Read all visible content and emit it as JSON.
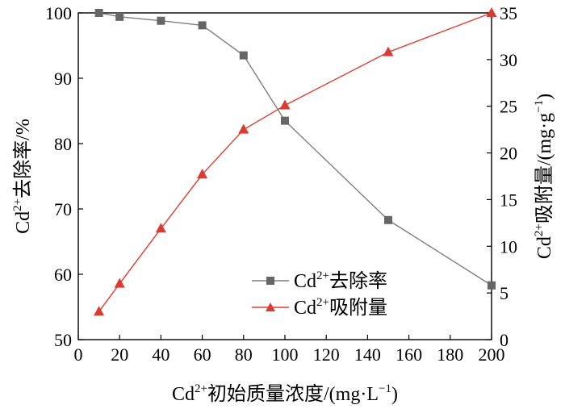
{
  "chart_data": {
    "type": "line",
    "x": [
      10,
      20,
      40,
      60,
      80,
      100,
      150,
      200
    ],
    "xlabel": {
      "base": "Cd",
      "sup": "2+",
      "rest": "初始质量浓度/(mg·L",
      "unit_sup": "−1",
      "close": ")"
    },
    "xlim": [
      0,
      200
    ],
    "xticks": [
      "0",
      "20",
      "40",
      "60",
      "80",
      "100",
      "120",
      "140",
      "160",
      "180",
      "200"
    ],
    "y_left": {
      "label": {
        "base": "Cd",
        "sup": "2+",
        "rest": "去除率/%"
      },
      "lim": [
        50,
        100
      ],
      "ticks": [
        "50",
        "60",
        "70",
        "80",
        "90",
        "100"
      ]
    },
    "y_right": {
      "label": {
        "base": "Cd",
        "sup": "2+",
        "rest": "吸附量/(mg·g",
        "unit_sup": "−1",
        "close": ")"
      },
      "lim": [
        0,
        35
      ],
      "ticks": [
        "0",
        "5",
        "10",
        "15",
        "20",
        "25",
        "30",
        "35"
      ]
    },
    "series": [
      {
        "name": {
          "base": "Cd",
          "sup": "2+",
          "rest": "去除率"
        },
        "axis": "left",
        "marker": "square",
        "color": "#7f7f7f",
        "marker_color": "#666666",
        "values": [
          100.0,
          99.4,
          98.8,
          98.1,
          93.5,
          83.5,
          68.3,
          58.3
        ]
      },
      {
        "name": {
          "base": "Cd",
          "sup": "2+",
          "rest": "吸附量"
        },
        "axis": "right",
        "marker": "triangle",
        "color": "#e03c31",
        "marker_color": "#d93a32",
        "values": [
          3.0,
          6.0,
          11.9,
          17.7,
          22.5,
          25.1,
          30.8,
          35.0
        ]
      }
    ],
    "legend_position": "lower-middle",
    "grid": false
  }
}
